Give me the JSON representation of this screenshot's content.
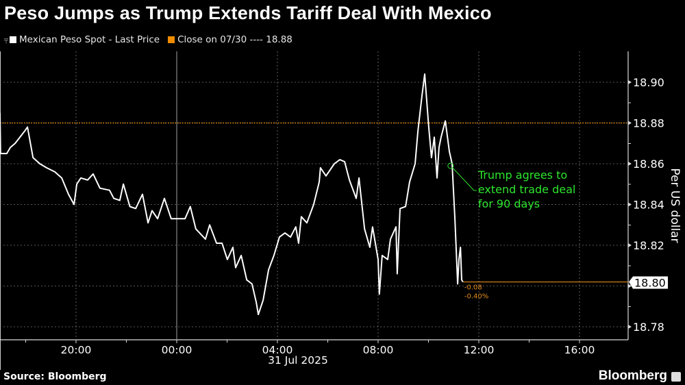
{
  "title": "Peso Jumps as Trump Extends Tariff Deal With Mexico",
  "legend": [
    {
      "label": "Mexican Peso Spot - Last Price",
      "color": "#ffffff"
    },
    {
      "label": "Close on 07/30 ---- 18.88",
      "color": "#f08c00"
    }
  ],
  "source": "Source: Bloomberg",
  "brand": "Bloomberg",
  "colors": {
    "line": "#ffffff",
    "close": "#f08c00",
    "annotation": "#2ee62e",
    "grid": "#777777",
    "change": "#e08a1a"
  },
  "chart_data": {
    "type": "line",
    "title": "Peso Jumps as Trump Extends Tariff Deal With Mexico",
    "xlabel": "",
    "ylabel": "Per US dollar",
    "x_units": "hours relative to 00:00 31 Jul 2025",
    "xlim": [
      -7.02,
      18
    ],
    "ylim": [
      18.772,
      18.916
    ],
    "x_ticks": [
      {
        "value": -4,
        "label": "20:00"
      },
      {
        "value": 0,
        "label": "00:00"
      },
      {
        "value": 4,
        "label": "04:00"
      },
      {
        "value": 8,
        "label": "08:00"
      },
      {
        "value": 12,
        "label": "12:00"
      },
      {
        "value": 16,
        "label": "16:00"
      }
    ],
    "date_label": "31 Jul 2025",
    "y_ticks": [
      18.78,
      18.8,
      18.82,
      18.84,
      18.86,
      18.88,
      18.9
    ],
    "y_tick_labels": [
      "18.78",
      "18.80",
      "18.82",
      "18.84",
      "18.86",
      "18.88",
      "18.90"
    ],
    "grid": true,
    "series": [
      {
        "name": "Mexican Peso Spot - Last Price",
        "points": [
          [
            -7.02,
            18.885
          ],
          [
            -7.0,
            18.865
          ],
          [
            -6.75,
            18.865
          ],
          [
            -6.61,
            18.868
          ],
          [
            -6.42,
            18.87
          ],
          [
            -6.04,
            18.876
          ],
          [
            -5.93,
            18.878
          ],
          [
            -5.71,
            18.863
          ],
          [
            -5.44,
            18.86
          ],
          [
            -5.17,
            18.858
          ],
          [
            -4.84,
            18.856
          ],
          [
            -4.57,
            18.853
          ],
          [
            -4.3,
            18.845
          ],
          [
            -4.08,
            18.84
          ],
          [
            -3.97,
            18.85
          ],
          [
            -3.81,
            18.853
          ],
          [
            -3.54,
            18.852
          ],
          [
            -3.32,
            18.855
          ],
          [
            -3.05,
            18.848
          ],
          [
            -2.67,
            18.847
          ],
          [
            -2.5,
            18.843
          ],
          [
            -2.26,
            18.842
          ],
          [
            -2.12,
            18.85
          ],
          [
            -1.86,
            18.839
          ],
          [
            -1.63,
            18.838
          ],
          [
            -1.36,
            18.845
          ],
          [
            -1.14,
            18.831
          ],
          [
            -0.98,
            18.837
          ],
          [
            -0.76,
            18.833
          ],
          [
            -0.49,
            18.843
          ],
          [
            -0.22,
            18.833
          ],
          [
            0.05,
            18.833
          ],
          [
            0.33,
            18.833
          ],
          [
            0.54,
            18.839
          ],
          [
            0.76,
            18.828
          ],
          [
            1.14,
            18.823
          ],
          [
            1.31,
            18.83
          ],
          [
            1.58,
            18.821
          ],
          [
            1.8,
            18.821
          ],
          [
            2.01,
            18.813
          ],
          [
            2.23,
            18.819
          ],
          [
            2.34,
            18.809
          ],
          [
            2.56,
            18.815
          ],
          [
            2.78,
            18.803
          ],
          [
            2.99,
            18.801
          ],
          [
            3.16,
            18.792
          ],
          [
            3.24,
            18.786
          ],
          [
            3.43,
            18.793
          ],
          [
            3.65,
            18.808
          ],
          [
            3.86,
            18.815
          ],
          [
            4.08,
            18.824
          ],
          [
            4.3,
            18.826
          ],
          [
            4.52,
            18.824
          ],
          [
            4.73,
            18.829
          ],
          [
            4.84,
            18.821
          ],
          [
            4.95,
            18.834
          ],
          [
            5.17,
            18.831
          ],
          [
            5.44,
            18.84
          ],
          [
            5.66,
            18.851
          ],
          [
            5.71,
            18.858
          ],
          [
            5.93,
            18.854
          ],
          [
            6.26,
            18.86
          ],
          [
            6.48,
            18.862
          ],
          [
            6.67,
            18.861
          ],
          [
            6.86,
            18.852
          ],
          [
            7.13,
            18.843
          ],
          [
            7.24,
            18.853
          ],
          [
            7.46,
            18.828
          ],
          [
            7.67,
            18.819
          ],
          [
            7.78,
            18.829
          ],
          [
            8.0,
            18.813
          ],
          [
            8.05,
            18.796
          ],
          [
            8.16,
            18.815
          ],
          [
            8.38,
            18.813
          ],
          [
            8.49,
            18.823
          ],
          [
            8.71,
            18.829
          ],
          [
            8.76,
            18.806
          ],
          [
            8.87,
            18.838
          ],
          [
            9.09,
            18.839
          ],
          [
            9.25,
            18.851
          ],
          [
            9.47,
            18.86
          ],
          [
            9.58,
            18.876
          ],
          [
            9.74,
            18.893
          ],
          [
            9.85,
            18.904
          ],
          [
            10.01,
            18.878
          ],
          [
            10.12,
            18.863
          ],
          [
            10.23,
            18.873
          ],
          [
            10.34,
            18.853
          ],
          [
            10.42,
            18.868
          ],
          [
            10.5,
            18.873
          ],
          [
            10.67,
            18.881
          ],
          [
            10.83,
            18.866
          ],
          [
            10.94,
            18.86
          ],
          [
            11.05,
            18.833
          ],
          [
            11.16,
            18.801
          ],
          [
            11.21,
            18.813
          ],
          [
            11.27,
            18.819
          ],
          [
            11.32,
            18.803
          ],
          [
            11.37,
            18.802
          ]
        ]
      },
      {
        "name": "Close on 07/30",
        "value": 18.88
      }
    ],
    "last_price": {
      "label": "18.80",
      "value": 18.802
    },
    "change": {
      "abs": "-0.08",
      "pct": "-0.40%"
    },
    "annotation": {
      "text": [
        "Trump agrees to",
        "extend trade deal",
        "for 90 days"
      ],
      "x": 10.88,
      "y": 18.859
    },
    "legend_position": "top-left"
  }
}
